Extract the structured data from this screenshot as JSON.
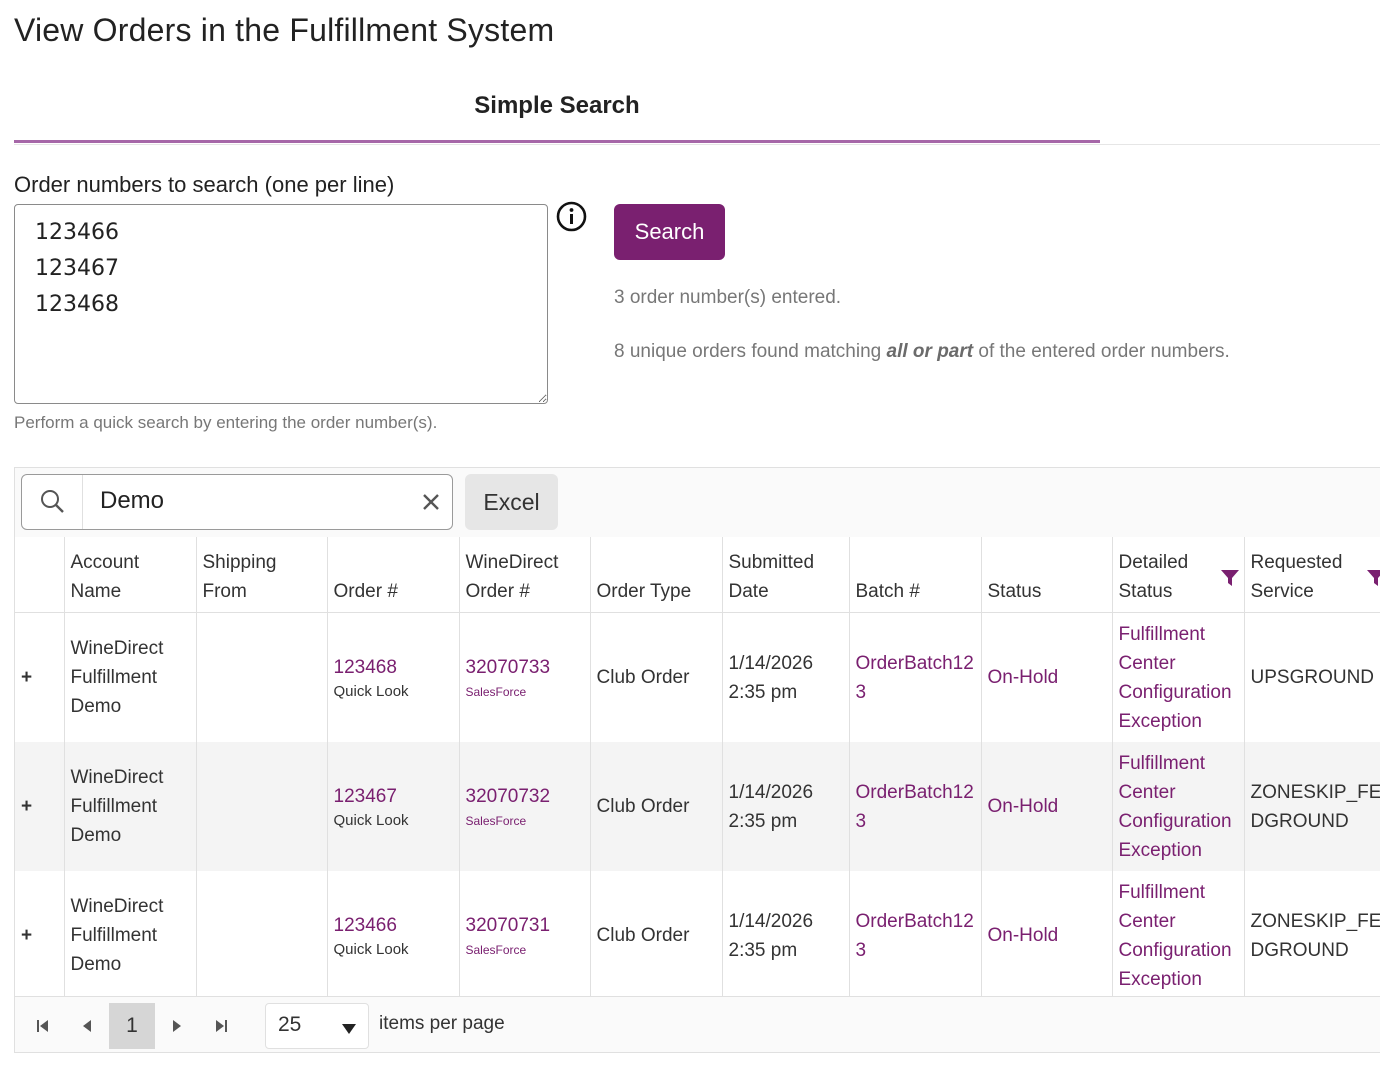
{
  "page": {
    "title": "View Orders in the Fulfillment System"
  },
  "tabs": [
    {
      "label": "Simple Search"
    }
  ],
  "search_form": {
    "label": "Order numbers to search (one per line)",
    "value": "123466\n123467\n123468",
    "helper": "Perform a quick search by entering the order number(s).",
    "button_label": "Search",
    "entered_msg": "3 order number(s) entered.",
    "found_prefix": "8 unique orders found matching ",
    "found_emphasis": "all or part",
    "found_suffix": " of the entered order numbers."
  },
  "grid": {
    "filter_value": "Demo",
    "excel_label": "Excel",
    "columns": [
      {
        "label": ""
      },
      {
        "label": "Account Name"
      },
      {
        "label": "Shipping From"
      },
      {
        "label": "Order #"
      },
      {
        "label": "WineDirect Order #"
      },
      {
        "label": "Order Type"
      },
      {
        "label": "Submitted Date"
      },
      {
        "label": "Batch #"
      },
      {
        "label": "Status"
      },
      {
        "label": "Detailed Status",
        "filtered": true
      },
      {
        "label": "Requested Service",
        "filtered": true
      }
    ],
    "rows": [
      {
        "expand": "+",
        "account": "WineDirect Fulfillment Demo",
        "shipping_from": "",
        "order": "123468",
        "order_sub": "Quick Look",
        "wd_order": "32070733",
        "wd_sub": "SalesForce",
        "type": "Club Order",
        "submitted": "1/14/2026 2:35 pm",
        "batch": "OrderBatch123",
        "status": "On-Hold",
        "detailed_status": "Fulfillment Center Configuration Exception",
        "service": "UPSGROUND"
      },
      {
        "expand": "+",
        "account": "WineDirect Fulfillment Demo",
        "shipping_from": "",
        "order": "123467",
        "order_sub": "Quick Look",
        "wd_order": "32070732",
        "wd_sub": "SalesForce",
        "type": "Club Order",
        "submitted": "1/14/2026 2:35 pm",
        "batch": "OrderBatch123",
        "status": "On-Hold",
        "detailed_status": "Fulfillment Center Configuration Exception",
        "service": "ZONESKIP_FEDGROUND"
      },
      {
        "expand": "+",
        "account": "WineDirect Fulfillment Demo",
        "shipping_from": "",
        "order": "123466",
        "order_sub": "Quick Look",
        "wd_order": "32070731",
        "wd_sub": "SalesForce",
        "type": "Club Order",
        "submitted": "1/14/2026 2:35 pm",
        "batch": "OrderBatch123",
        "status": "On-Hold",
        "detailed_status": "Fulfillment Center Configuration Exception",
        "service": "ZONESKIP_FEDGROUND"
      }
    ]
  },
  "pager": {
    "current_page": "1",
    "page_size": "25",
    "items_label": "items per page"
  },
  "colors": {
    "brand": "#7a2070",
    "tab_underline": "#a667a8"
  }
}
